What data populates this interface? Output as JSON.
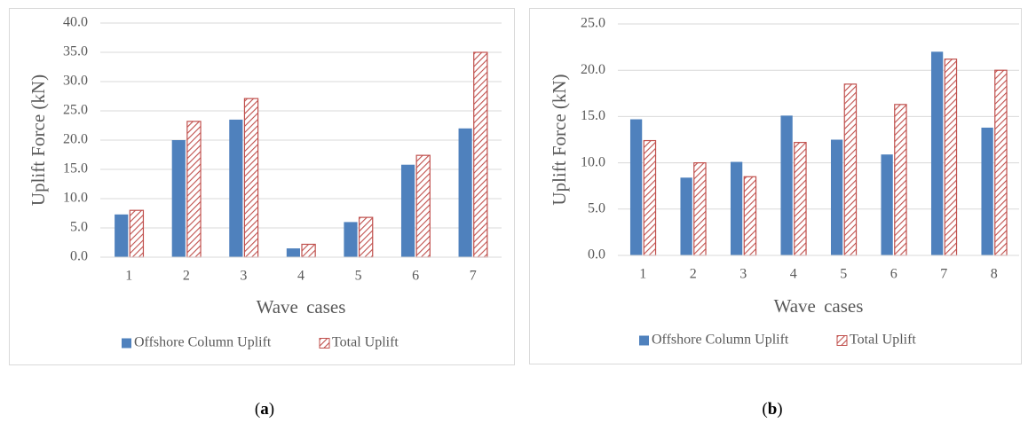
{
  "chart_data": [
    {
      "type": "bar",
      "caption": "(a)",
      "y_label": "Uplift Force (kN)",
      "x_label": "Wave cases",
      "categories": [
        "1",
        "2",
        "3",
        "4",
        "5",
        "6",
        "7"
      ],
      "series": [
        {
          "name": "Offshore Column Uplift",
          "color": "#4f81bd",
          "values": [
            7.3,
            20.0,
            23.5,
            1.5,
            6.0,
            15.8,
            22.0
          ]
        },
        {
          "name": "Total Uplift",
          "color": "#c0504d",
          "pattern": "hatch",
          "values": [
            8.0,
            23.2,
            27.1,
            2.2,
            6.8,
            17.4,
            35.0
          ]
        }
      ],
      "ylim": [
        0,
        40
      ],
      "yticks": [
        {
          "value": 0,
          "label": "0.0"
        },
        {
          "value": 5,
          "label": "5.0"
        },
        {
          "value": 10,
          "label": "10.0"
        },
        {
          "value": 15,
          "label": "15.0"
        },
        {
          "value": 20,
          "label": "20.0"
        },
        {
          "value": 25,
          "label": "25.0"
        },
        {
          "value": 30,
          "label": "30.0"
        },
        {
          "value": 35,
          "label": "35.0"
        },
        {
          "value": 40,
          "label": "40.0"
        }
      ],
      "grid": true,
      "legend": "bottom"
    },
    {
      "type": "bar",
      "caption": "(b)",
      "y_label": "Uplift Force (kN)",
      "x_label": "Wave cases",
      "categories": [
        "1",
        "2",
        "3",
        "4",
        "5",
        "6",
        "7",
        "8"
      ],
      "series": [
        {
          "name": "Offshore Column Uplift",
          "color": "#4f81bd",
          "values": [
            14.7,
            8.4,
            10.1,
            15.1,
            12.5,
            10.9,
            22.0,
            13.8
          ]
        },
        {
          "name": "Total Uplift",
          "color": "#c0504d",
          "pattern": "hatch",
          "values": [
            12.4,
            10.0,
            8.5,
            12.2,
            18.5,
            16.3,
            21.2,
            20.0
          ]
        }
      ],
      "ylim": [
        0,
        25
      ],
      "yticks": [
        {
          "value": 0,
          "label": "0.0"
        },
        {
          "value": 5,
          "label": "5.0"
        },
        {
          "value": 10,
          "label": "10.0"
        },
        {
          "value": 15,
          "label": "15.0"
        },
        {
          "value": 20,
          "label": "20.0"
        },
        {
          "value": 25,
          "label": "25.0"
        }
      ],
      "grid": true,
      "legend": "bottom"
    }
  ]
}
